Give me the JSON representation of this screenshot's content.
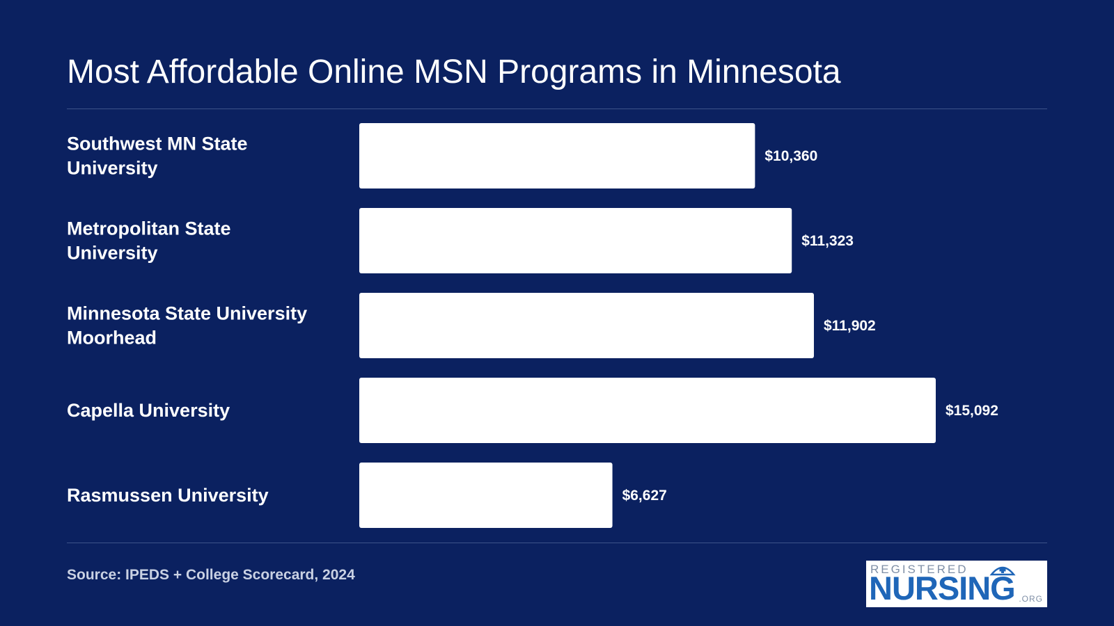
{
  "chart_data": {
    "type": "bar",
    "orientation": "horizontal",
    "title": "Most Affordable Online MSN Programs in Minnesota",
    "categories": [
      [
        "Southwest MN State",
        "University"
      ],
      [
        "Metropolitan State",
        "University"
      ],
      [
        "Minnesota State University",
        "Moorhead"
      ],
      [
        "Capella University"
      ],
      [
        "Rasmussen University"
      ]
    ],
    "values": [
      10360,
      11323,
      11902,
      15092,
      6627
    ],
    "value_labels": [
      "$10,360",
      "$11,323",
      "$11,902",
      "$15,092",
      "$6,627"
    ],
    "xlim": [
      0,
      15092
    ],
    "grid": false,
    "legend": "none",
    "bar_color": "#ffffff",
    "background_color": "#0b2160"
  },
  "footer": {
    "source": "Source: IPEDS + College Scorecard, 2024"
  },
  "logo": {
    "top_text": "REGISTERED",
    "main_text": "NURSING",
    "suffix_text": ".ORG",
    "icon": "nurse-cap-icon",
    "brand_color": "#1f66b8"
  }
}
